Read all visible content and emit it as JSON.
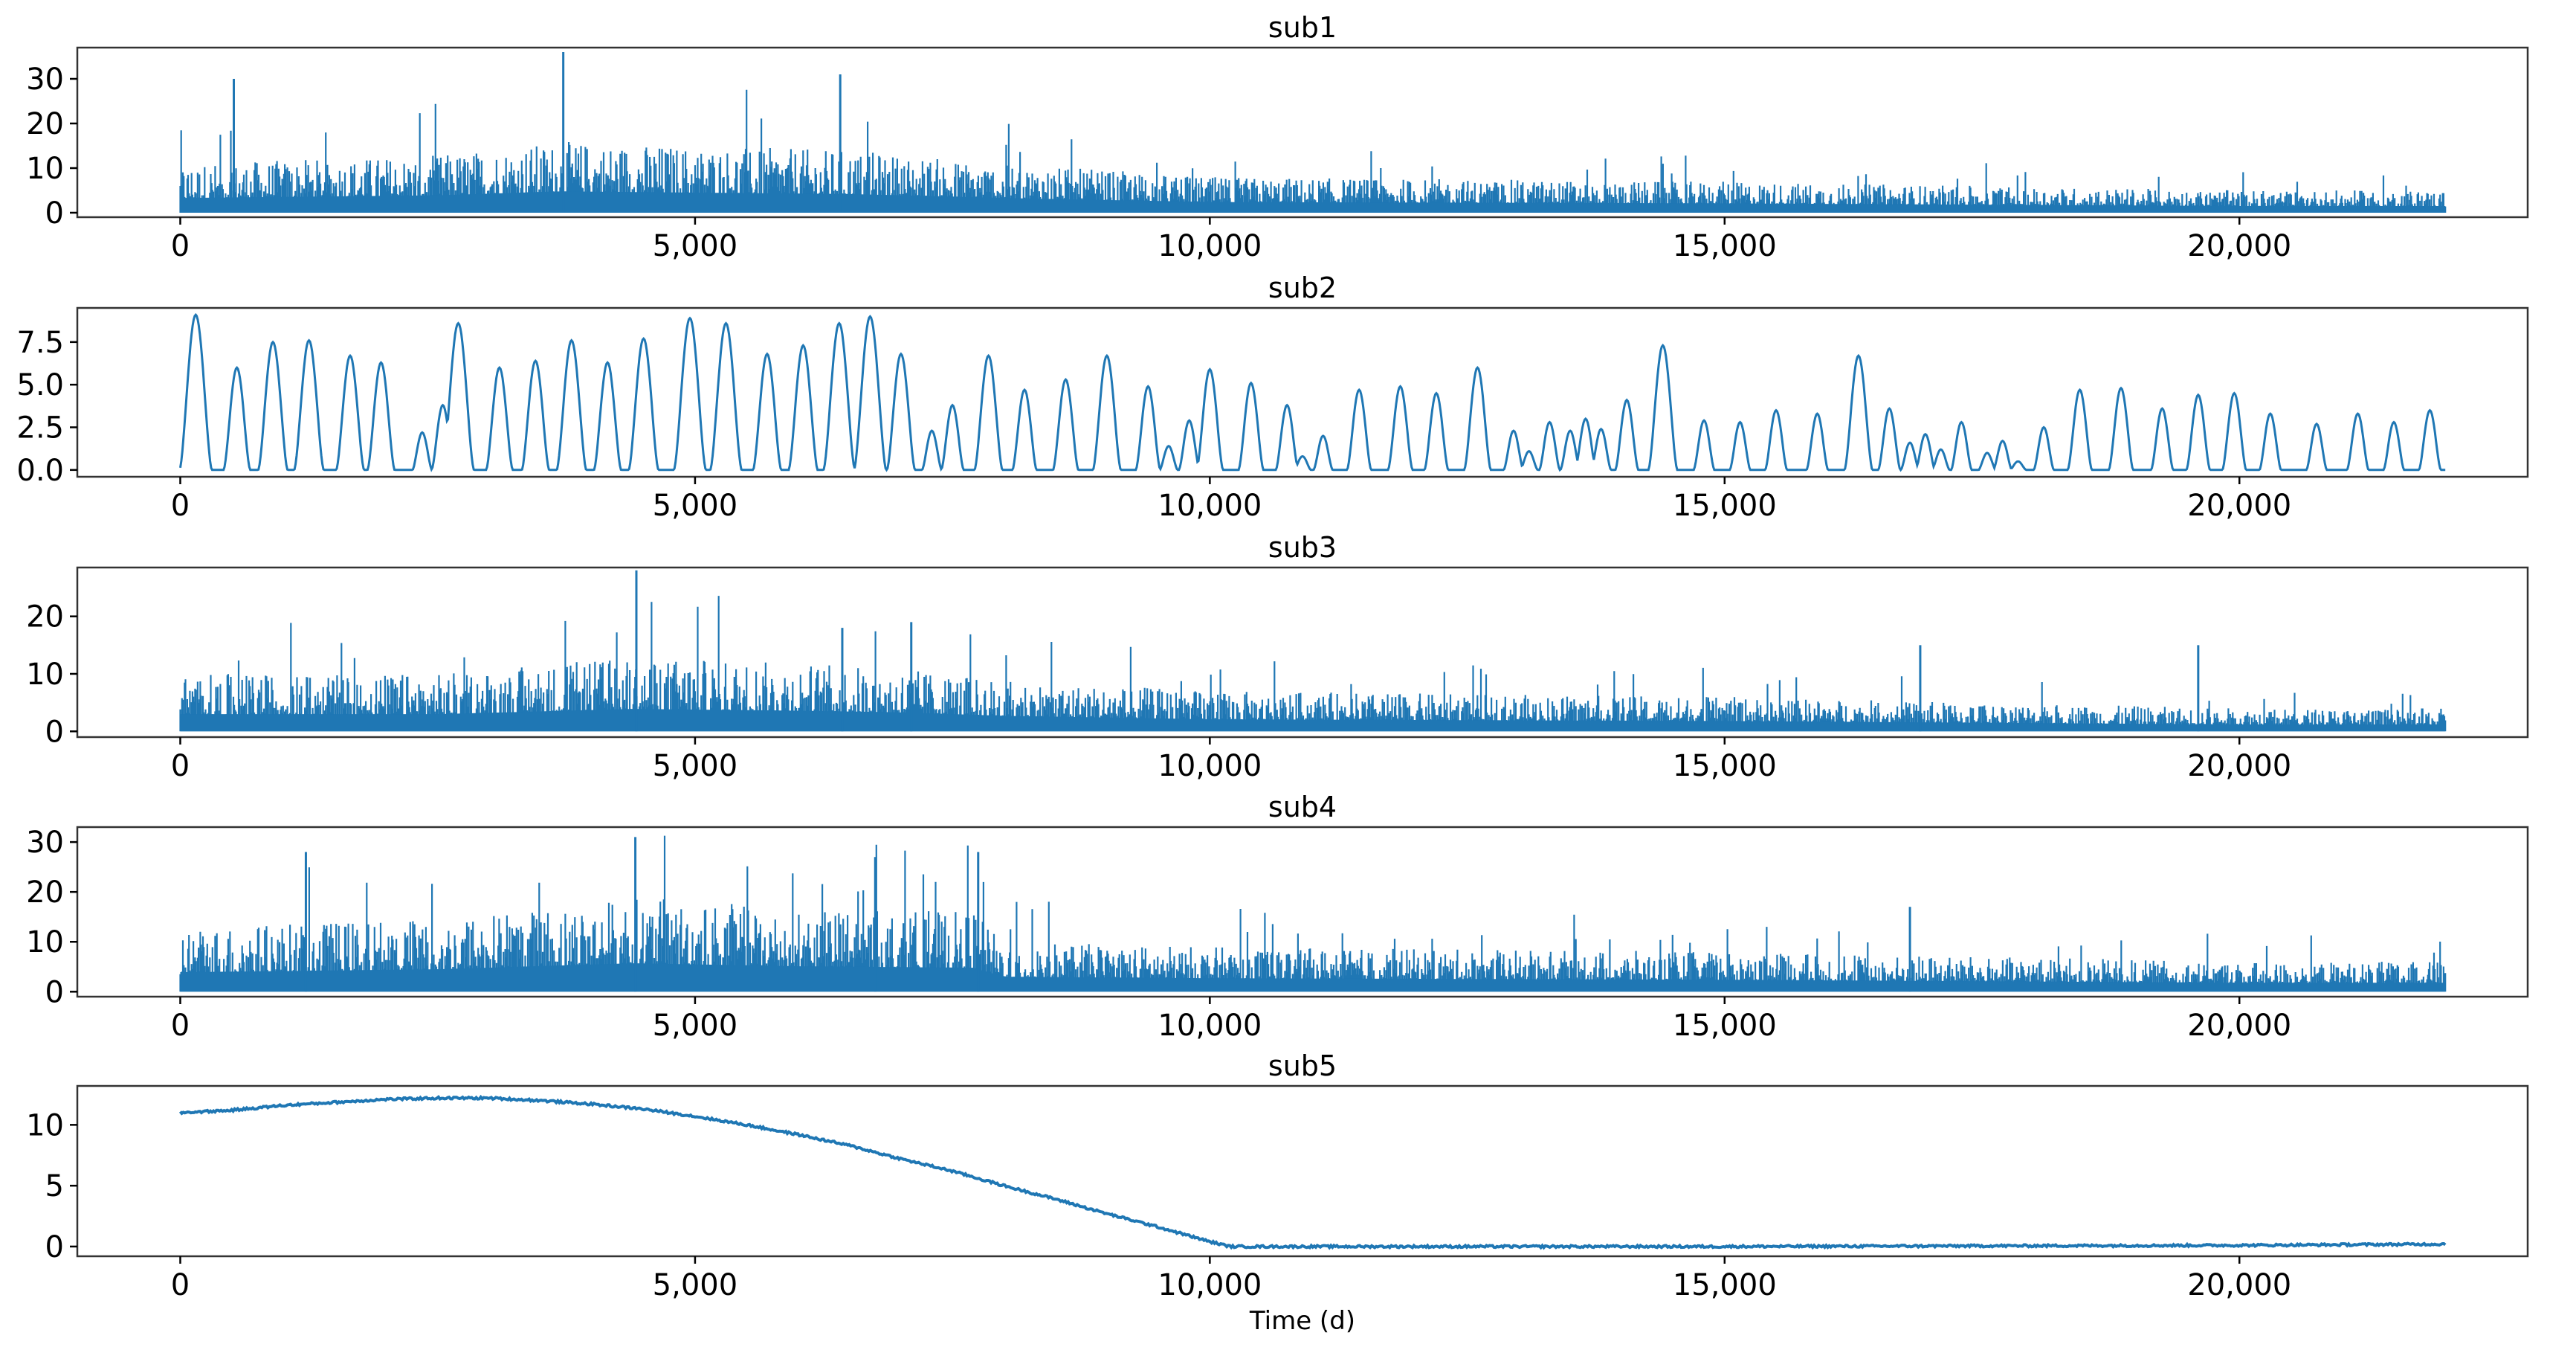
{
  "chart_data": [
    {
      "type": "line",
      "title": "sub1",
      "xlim": [
        -1000,
        22800
      ],
      "ylim": [
        -1,
        37
      ],
      "xticks": [
        0,
        5000,
        10000,
        15000,
        20000
      ],
      "xtick_labels": [
        "0",
        "5,000",
        "10,000",
        "15,000",
        "20,000"
      ],
      "yticks": [
        0,
        10,
        20,
        30
      ],
      "ytick_labels": [
        "0",
        "10",
        "20",
        "30"
      ],
      "color": "#1f77b4",
      "series": [
        {
          "x_range": [
            0,
            22000
          ],
          "kind": "noisy",
          "envelope": {
            "x": [
              0,
              2500,
              3700,
              5000,
              6500,
              8000,
              10000,
              15000,
              20000,
              22000
            ],
            "y": [
              11,
              13,
              16,
              15,
              14,
              11,
              8,
              7,
              5,
              5
            ]
          },
          "spikes": [
            [
              520,
              30
            ],
            [
              3720,
              36
            ],
            [
              6410,
              31
            ]
          ]
        }
      ]
    },
    {
      "type": "line",
      "title": "sub2",
      "xlim": [
        -1000,
        22800
      ],
      "ylim": [
        -0.4,
        9.5
      ],
      "xticks": [
        0,
        5000,
        10000,
        15000,
        20000
      ],
      "xtick_labels": [
        "0",
        "5,000",
        "10,000",
        "15,000",
        "20,000"
      ],
      "yticks": [
        0,
        2.5,
        5,
        7.5
      ],
      "ytick_labels": [
        "0.0",
        "2.5",
        "5.0",
        "7.5"
      ],
      "color": "#1f77b4",
      "series": [
        {
          "x_range": [
            0,
            22000
          ],
          "kind": "peaks",
          "peaks": [
            [
              150,
              9.1
            ],
            [
              550,
              6.0
            ],
            [
              900,
              7.5
            ],
            [
              1250,
              7.6
            ],
            [
              1650,
              6.7
            ],
            [
              1950,
              6.3
            ],
            [
              2350,
              2.2
            ],
            [
              2550,
              3.8
            ],
            [
              2700,
              8.6
            ],
            [
              3100,
              6.0
            ],
            [
              3450,
              6.4
            ],
            [
              3800,
              7.6
            ],
            [
              4150,
              6.3
            ],
            [
              4500,
              7.7
            ],
            [
              4950,
              8.9
            ],
            [
              5300,
              8.6
            ],
            [
              5700,
              6.8
            ],
            [
              6050,
              7.3
            ],
            [
              6400,
              8.6
            ],
            [
              6700,
              9.0
            ],
            [
              7000,
              6.8
            ],
            [
              7300,
              2.3
            ],
            [
              7500,
              3.8
            ],
            [
              7850,
              6.7
            ],
            [
              8200,
              4.7
            ],
            [
              8600,
              5.3
            ],
            [
              9000,
              6.7
            ],
            [
              9400,
              4.9
            ],
            [
              9600,
              1.4
            ],
            [
              9800,
              2.9
            ],
            [
              10000,
              5.9
            ],
            [
              10400,
              5.1
            ],
            [
              10750,
              3.8
            ],
            [
              10900,
              0.8
            ],
            [
              11100,
              2.0
            ],
            [
              11450,
              4.7
            ],
            [
              11850,
              4.9
            ],
            [
              12200,
              4.5
            ],
            [
              12600,
              6.0
            ],
            [
              12950,
              2.3
            ],
            [
              13100,
              1.1
            ],
            [
              13300,
              2.8
            ],
            [
              13500,
              2.3
            ],
            [
              13650,
              3.0
            ],
            [
              13800,
              2.4
            ],
            [
              14050,
              4.1
            ],
            [
              14400,
              7.3
            ],
            [
              14800,
              2.9
            ],
            [
              15150,
              2.8
            ],
            [
              15500,
              3.5
            ],
            [
              15900,
              3.3
            ],
            [
              16300,
              6.7
            ],
            [
              16600,
              3.6
            ],
            [
              16800,
              1.6
            ],
            [
              16950,
              2.1
            ],
            [
              17100,
              1.2
            ],
            [
              17300,
              2.8
            ],
            [
              17550,
              1.0
            ],
            [
              17700,
              1.7
            ],
            [
              17850,
              0.5
            ],
            [
              18100,
              2.5
            ],
            [
              18450,
              4.7
            ],
            [
              18850,
              4.8
            ],
            [
              19250,
              3.6
            ],
            [
              19600,
              4.4
            ],
            [
              19950,
              4.5
            ],
            [
              20300,
              3.3
            ],
            [
              20750,
              2.7
            ],
            [
              21150,
              3.3
            ],
            [
              21500,
              2.8
            ],
            [
              21850,
              3.5
            ]
          ]
        }
      ]
    },
    {
      "type": "line",
      "title": "sub3",
      "xlim": [
        -1000,
        22800
      ],
      "ylim": [
        -1,
        28.5
      ],
      "xticks": [
        0,
        5000,
        10000,
        15000,
        20000
      ],
      "xtick_labels": [
        "0",
        "5,000",
        "10,000",
        "15,000",
        "20,000"
      ],
      "yticks": [
        0,
        10,
        20
      ],
      "ytick_labels": [
        "0",
        "10",
        "20"
      ],
      "color": "#1f77b4",
      "series": [
        {
          "x_range": [
            0,
            22000
          ],
          "kind": "noisy",
          "envelope": {
            "x": [
              0,
              2500,
              4400,
              6000,
              7000,
              8000,
              10000,
              15000,
              20000,
              22000
            ],
            "y": [
              10,
              10,
              13,
              12,
              11,
              9,
              7,
              6,
              4,
              4
            ]
          },
          "spikes": [
            [
              4430,
              28
            ],
            [
              6430,
              18
            ],
            [
              7100,
              19
            ],
            [
              16900,
              15
            ],
            [
              19600,
              15
            ]
          ]
        }
      ]
    },
    {
      "type": "line",
      "title": "sub4",
      "xlim": [
        -1000,
        22800
      ],
      "ylim": [
        -1,
        33
      ],
      "xticks": [
        0,
        5000,
        10000,
        15000,
        20000
      ],
      "xtick_labels": [
        "0",
        "5,000",
        "10,000",
        "15,000",
        "20,000"
      ],
      "yticks": [
        0,
        10,
        20,
        30
      ],
      "ytick_labels": [
        "0",
        "10",
        "20",
        "30"
      ],
      "color": "#1f77b4",
      "series": [
        {
          "x_range": [
            0,
            22000
          ],
          "kind": "noisy",
          "envelope": {
            "x": [
              0,
              2500,
              4400,
              6000,
              7700,
              8000,
              10000,
              15000,
              20000,
              22000
            ],
            "y": [
              13,
              15,
              19,
              17,
              16,
              10,
              9,
              8,
              6,
              6
            ]
          },
          "spikes": [
            [
              1220,
              28
            ],
            [
              4420,
              31
            ],
            [
              6750,
              27
            ],
            [
              7750,
              28
            ],
            [
              16800,
              17
            ]
          ]
        }
      ]
    },
    {
      "type": "line",
      "title": "sub5",
      "xlim": [
        -1000,
        22800
      ],
      "ylim": [
        -0.8,
        13.2
      ],
      "xticks": [
        0,
        5000,
        10000,
        15000,
        20000
      ],
      "xtick_labels": [
        "0",
        "5,000",
        "10,000",
        "15,000",
        "20,000"
      ],
      "yticks": [
        0,
        5,
        10
      ],
      "ytick_labels": [
        "0",
        "5",
        "10"
      ],
      "xlabel": "Time (d)",
      "color": "#1f77b4",
      "series": [
        {
          "x_range": [
            0,
            22000
          ],
          "kind": "curve",
          "points": {
            "x": [
              0,
              500,
              1000,
              2000,
              2500,
              3000,
              3500,
              4000,
              4500,
              5000,
              5500,
              6000,
              6500,
              7000,
              7500,
              8000,
              8500,
              9000,
              9500,
              10000,
              10200,
              15000,
              20000,
              22000
            ],
            "y": [
              11.0,
              11.2,
              11.6,
              12.1,
              12.2,
              12.2,
              12.0,
              11.7,
              11.3,
              10.7,
              10.0,
              9.2,
              8.3,
              7.2,
              6.2,
              5.0,
              3.9,
              2.7,
              1.6,
              0.4,
              0.0,
              0.0,
              0.1,
              0.2
            ]
          }
        }
      ]
    }
  ]
}
